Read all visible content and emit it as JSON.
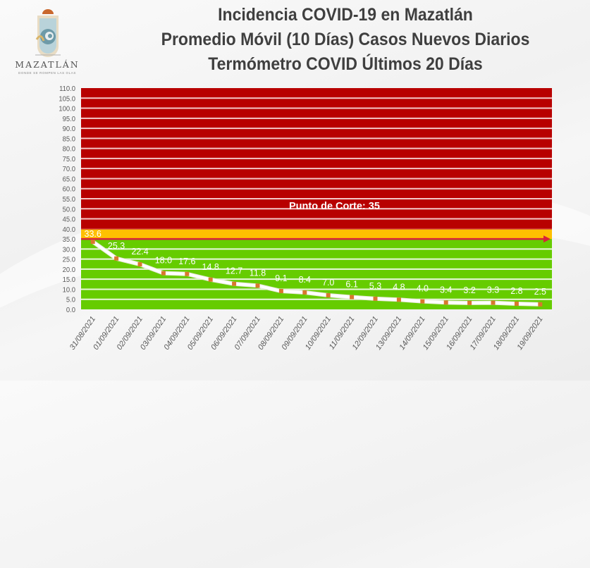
{
  "header": {
    "logo": {
      "name": "MAZATLÁN",
      "tagline": "DONDE SE ROMPEN LAS OLAS",
      "icon": "shell-wave-icon"
    },
    "titles": [
      "Incidencia COVID-19 en Mazatlán",
      "Promedio Móvil (10 Días) Casos Nuevos Diarios",
      "Termómetro COVID Últimos 20 Días"
    ]
  },
  "colors": {
    "red_zone": "#b80000",
    "yellow_zone": "#ffc000",
    "green_zone": "#66cc00",
    "gridline": "#f4c8c8",
    "green_gridline": "#e9f7df",
    "cutoff_arrow": "#d9213a",
    "line": "#ffffff",
    "marker": "#d8782e",
    "axis_text": "#595959"
  },
  "chart_data": {
    "type": "line",
    "title": "Incidencia COVID-19 en Mazatlán — Promedio Móvil (10 Días) Casos Nuevos Diarios — Termómetro COVID Últimos 20 Días",
    "xlabel": "",
    "ylabel": "",
    "ylim": [
      0,
      110
    ],
    "ytick_step": 5,
    "yticks": [
      "0.0",
      "5.0",
      "10.0",
      "15.0",
      "20.0",
      "25.0",
      "30.0",
      "35.0",
      "40.0",
      "45.0",
      "50.0",
      "55.0",
      "60.0",
      "65.0",
      "70.0",
      "75.0",
      "80.0",
      "85.0",
      "90.0",
      "95.0",
      "100.0",
      "105.0",
      "110.0"
    ],
    "grid": true,
    "legend": null,
    "categories": [
      "31/08/2021",
      "01/09/2021",
      "02/09/2021",
      "03/09/2021",
      "04/09/2021",
      "05/09/2021",
      "06/09/2021",
      "07/09/2021",
      "08/09/2021",
      "09/09/2021",
      "10/09/2021",
      "11/09/2021",
      "12/09/2021",
      "13/09/2021",
      "14/09/2021",
      "15/09/2021",
      "16/09/2021",
      "17/09/2021",
      "18/09/2021",
      "19/09/2021"
    ],
    "series": [
      {
        "name": "Promedio Móvil (10 Días)",
        "values": [
          33.6,
          25.3,
          22.4,
          18.0,
          17.6,
          14.8,
          12.7,
          11.8,
          9.1,
          8.4,
          7.0,
          6.1,
          5.3,
          4.8,
          4.0,
          3.4,
          3.2,
          3.3,
          2.8,
          2.5
        ]
      }
    ],
    "data_labels": [
      "33.6",
      "25.3",
      "22.4",
      "18.0",
      "17.6",
      "14.8",
      "12.7",
      "11.8",
      "9.1",
      "8.4",
      "7.0",
      "6.1",
      "5.3",
      "4.8",
      "4.0",
      "3.4",
      "3.2",
      "3.3",
      "2.8",
      "2.5"
    ],
    "zones": [
      {
        "name": "green",
        "from": 0,
        "to": 35
      },
      {
        "name": "yellow",
        "from": 35,
        "to": 40
      },
      {
        "name": "red",
        "from": 40,
        "to": 110
      }
    ],
    "annotations": [
      {
        "text": "Punto de Corte: 35",
        "y": 35,
        "type": "cutoff-arrow"
      }
    ]
  }
}
